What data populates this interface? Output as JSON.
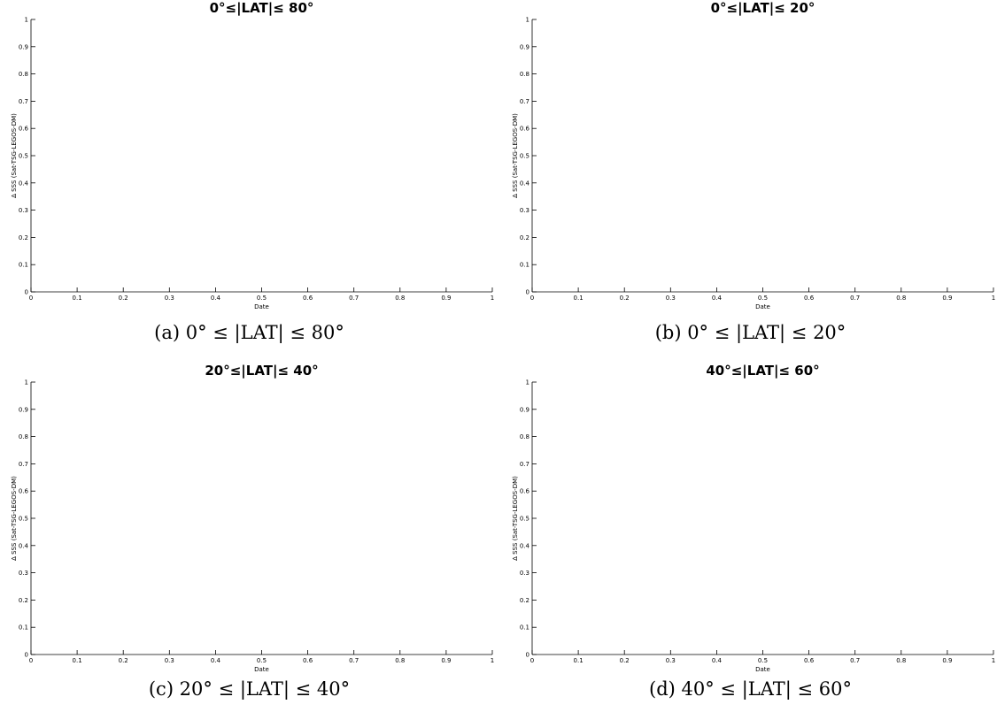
{
  "chart_data": [
    {
      "type": "line",
      "title": "0°≤|LAT|≤ 80°",
      "xlabel": "Date",
      "ylabel": "Δ SSS (Sat-TSG-LEGOS-DM)",
      "xlim": [
        0,
        1
      ],
      "ylim": [
        0,
        1
      ],
      "x_ticks": [
        "0",
        "0.1",
        "0.2",
        "0.3",
        "0.4",
        "0.5",
        "0.6",
        "0.7",
        "0.8",
        "0.9",
        "1"
      ],
      "y_ticks": [
        "0",
        "0.1",
        "0.2",
        "0.3",
        "0.4",
        "0.5",
        "0.6",
        "0.7",
        "0.8",
        "0.9",
        "1"
      ],
      "series": [],
      "grid": false,
      "caption": "(a) 0° ≤ |LAT| ≤ 80°"
    },
    {
      "type": "line",
      "title": "0°≤|LAT|≤ 20°",
      "xlabel": "Date",
      "ylabel": "Δ SSS (Sat-TSG-LEGOS-DM)",
      "xlim": [
        0,
        1
      ],
      "ylim": [
        0,
        1
      ],
      "x_ticks": [
        "0",
        "0.1",
        "0.2",
        "0.3",
        "0.4",
        "0.5",
        "0.6",
        "0.7",
        "0.8",
        "0.9",
        "1"
      ],
      "y_ticks": [
        "0",
        "0.1",
        "0.2",
        "0.3",
        "0.4",
        "0.5",
        "0.6",
        "0.7",
        "0.8",
        "0.9",
        "1"
      ],
      "series": [],
      "grid": false,
      "caption": "(b) 0° ≤ |LAT| ≤ 20°"
    },
    {
      "type": "line",
      "title": "20°≤|LAT|≤ 40°",
      "xlabel": "Date",
      "ylabel": "Δ SSS (Sat-TSG-LEGOS-DM)",
      "xlim": [
        0,
        1
      ],
      "ylim": [
        0,
        1
      ],
      "x_ticks": [
        "0",
        "0.1",
        "0.2",
        "0.3",
        "0.4",
        "0.5",
        "0.6",
        "0.7",
        "0.8",
        "0.9",
        "1"
      ],
      "y_ticks": [
        "0",
        "0.1",
        "0.2",
        "0.3",
        "0.4",
        "0.5",
        "0.6",
        "0.7",
        "0.8",
        "0.9",
        "1"
      ],
      "series": [],
      "grid": false,
      "caption": "(c) 20° ≤ |LAT| ≤ 40°"
    },
    {
      "type": "line",
      "title": "40°≤|LAT|≤ 60°",
      "xlabel": "Date",
      "ylabel": "Δ SSS (Sat-TSG-LEGOS-DM)",
      "xlim": [
        0,
        1
      ],
      "ylim": [
        0,
        1
      ],
      "x_ticks": [
        "0",
        "0.1",
        "0.2",
        "0.3",
        "0.4",
        "0.5",
        "0.6",
        "0.7",
        "0.8",
        "0.9",
        "1"
      ],
      "y_ticks": [
        "0",
        "0.1",
        "0.2",
        "0.3",
        "0.4",
        "0.5",
        "0.6",
        "0.7",
        "0.8",
        "0.9",
        "1"
      ],
      "series": [],
      "grid": false,
      "caption": "(d) 40° ≤ |LAT| ≤ 60°"
    }
  ]
}
